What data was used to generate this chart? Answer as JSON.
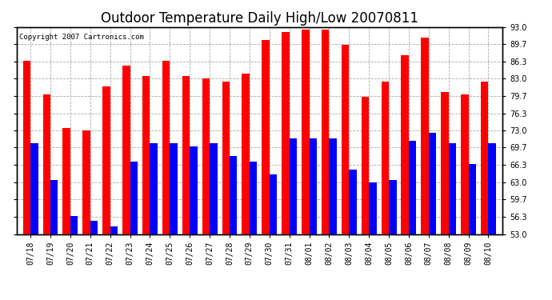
{
  "title": "Outdoor Temperature Daily High/Low 20070811",
  "copyright": "Copyright 2007 Cartronics.com",
  "dates": [
    "07/18",
    "07/19",
    "07/20",
    "07/21",
    "07/22",
    "07/23",
    "07/24",
    "07/25",
    "07/26",
    "07/27",
    "07/28",
    "07/29",
    "07/30",
    "07/31",
    "08/01",
    "08/02",
    "08/03",
    "08/04",
    "08/05",
    "08/06",
    "08/07",
    "08/08",
    "08/09",
    "08/10"
  ],
  "highs": [
    86.5,
    80.0,
    73.5,
    73.0,
    81.5,
    85.5,
    83.5,
    86.5,
    83.5,
    83.0,
    82.5,
    84.0,
    90.5,
    92.0,
    92.5,
    92.5,
    89.5,
    79.5,
    82.5,
    87.5,
    91.0,
    80.5,
    80.0,
    82.5
  ],
  "lows": [
    70.5,
    63.5,
    56.5,
    55.5,
    54.5,
    67.0,
    70.5,
    70.5,
    70.0,
    70.5,
    68.0,
    67.0,
    64.5,
    71.5,
    71.5,
    71.5,
    65.5,
    63.0,
    63.5,
    71.0,
    72.5,
    70.5,
    66.5,
    70.5
  ],
  "high_color": "#ff0000",
  "low_color": "#0000ff",
  "bg_color": "#ffffff",
  "grid_color": "#aaaaaa",
  "ylim_min": 53.0,
  "ylim_max": 93.0,
  "yticks": [
    53.0,
    56.3,
    59.7,
    63.0,
    66.3,
    69.7,
    73.0,
    76.3,
    79.7,
    83.0,
    86.3,
    89.7,
    93.0
  ],
  "bar_width": 0.38,
  "title_fontsize": 12,
  "tick_fontsize": 7,
  "copyright_fontsize": 6.5
}
